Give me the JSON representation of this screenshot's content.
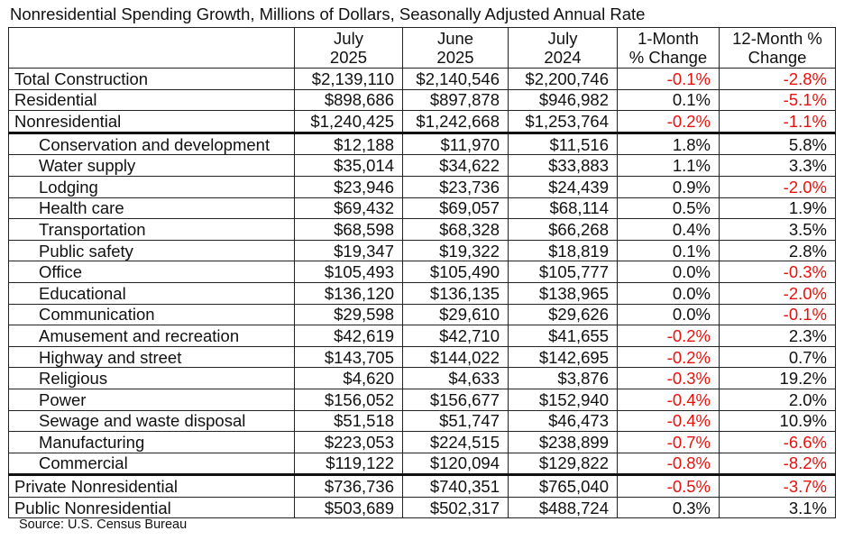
{
  "title": "Nonresidential Spending Growth, Millions of Dollars, Seasonally Adjusted Annual Rate",
  "columns": [
    {
      "line1": "",
      "line2": ""
    },
    {
      "line1": "July",
      "line2": "2025"
    },
    {
      "line1": "June",
      "line2": "2025"
    },
    {
      "line1": "July",
      "line2": "2024"
    },
    {
      "line1": "1-Month",
      "line2": "% Change"
    },
    {
      "line1": "12-Month %",
      "line2": "Change"
    }
  ],
  "rows": [
    {
      "label": "Total Construction",
      "jul2025": "$2,139,110",
      "jun2025": "$2,140,546",
      "jul2024": "$2,200,746",
      "m1": "-0.1%",
      "m12": "-2.8%"
    },
    {
      "label": "Residential",
      "jul2025": "$898,686",
      "jun2025": "$897,878",
      "jul2024": "$946,982",
      "m1": "0.1%",
      "m12": "-5.1%"
    },
    {
      "label": "Nonresidential",
      "jul2025": "$1,240,425",
      "jun2025": "$1,242,668",
      "jul2024": "$1,253,764",
      "m1": "-0.2%",
      "m12": "-1.1%"
    },
    {
      "label": "Conservation and development",
      "jul2025": "$12,188",
      "jun2025": "$11,970",
      "jul2024": "$11,516",
      "m1": "1.8%",
      "m12": "5.8%"
    },
    {
      "label": "Water supply",
      "jul2025": "$35,014",
      "jun2025": "$34,622",
      "jul2024": "$33,883",
      "m1": "1.1%",
      "m12": "3.3%"
    },
    {
      "label": "Lodging",
      "jul2025": "$23,946",
      "jun2025": "$23,736",
      "jul2024": "$24,439",
      "m1": "0.9%",
      "m12": "-2.0%"
    },
    {
      "label": "Health care",
      "jul2025": "$69,432",
      "jun2025": "$69,057",
      "jul2024": "$68,114",
      "m1": "0.5%",
      "m12": "1.9%"
    },
    {
      "label": "Transportation",
      "jul2025": "$68,598",
      "jun2025": "$68,328",
      "jul2024": "$66,268",
      "m1": "0.4%",
      "m12": "3.5%"
    },
    {
      "label": "Public safety",
      "jul2025": "$19,347",
      "jun2025": "$19,322",
      "jul2024": "$18,819",
      "m1": "0.1%",
      "m12": "2.8%"
    },
    {
      "label": "Office",
      "jul2025": "$105,493",
      "jun2025": "$105,490",
      "jul2024": "$105,777",
      "m1": "0.0%",
      "m12": "-0.3%"
    },
    {
      "label": "Educational",
      "jul2025": "$136,120",
      "jun2025": "$136,135",
      "jul2024": "$138,965",
      "m1": "0.0%",
      "m12": "-2.0%"
    },
    {
      "label": "Communication",
      "jul2025": "$29,598",
      "jun2025": "$29,610",
      "jul2024": "$29,626",
      "m1": "0.0%",
      "m12": "-0.1%"
    },
    {
      "label": "Amusement and recreation",
      "jul2025": "$42,619",
      "jun2025": "$42,710",
      "jul2024": "$41,655",
      "m1": "-0.2%",
      "m12": "2.3%"
    },
    {
      "label": "Highway and street",
      "jul2025": "$143,705",
      "jun2025": "$144,022",
      "jul2024": "$142,695",
      "m1": "-0.2%",
      "m12": "0.7%"
    },
    {
      "label": "Religious",
      "jul2025": "$4,620",
      "jun2025": "$4,633",
      "jul2024": "$3,876",
      "m1": "-0.3%",
      "m12": "19.2%"
    },
    {
      "label": "Power",
      "jul2025": "$156,052",
      "jun2025": "$156,677",
      "jul2024": "$152,940",
      "m1": "-0.4%",
      "m12": "2.0%"
    },
    {
      "label": "Sewage and waste disposal",
      "jul2025": "$51,518",
      "jun2025": "$51,747",
      "jul2024": "$46,473",
      "m1": "-0.4%",
      "m12": "10.9%"
    },
    {
      "label": "Manufacturing",
      "jul2025": "$223,053",
      "jun2025": "$224,515",
      "jul2024": "$238,899",
      "m1": "-0.7%",
      "m12": "-6.6%"
    },
    {
      "label": "Commercial",
      "jul2025": "$119,122",
      "jun2025": "$120,094",
      "jul2024": "$129,822",
      "m1": "-0.8%",
      "m12": "-8.2%"
    },
    {
      "label": "Private Nonresidential",
      "jul2025": "$736,736",
      "jun2025": "$740,351",
      "jul2024": "$765,040",
      "m1": "-0.5%",
      "m12": "-3.7%"
    },
    {
      "label": "Public Nonresidential",
      "jul2025": "$503,689",
      "jun2025": "$502,317",
      "jul2024": "$488,724",
      "m1": "0.3%",
      "m12": "3.1%"
    }
  ],
  "source": "Source: U.S. Census Bureau",
  "colors": {
    "negative": "#e8120c",
    "text": "#111111"
  }
}
